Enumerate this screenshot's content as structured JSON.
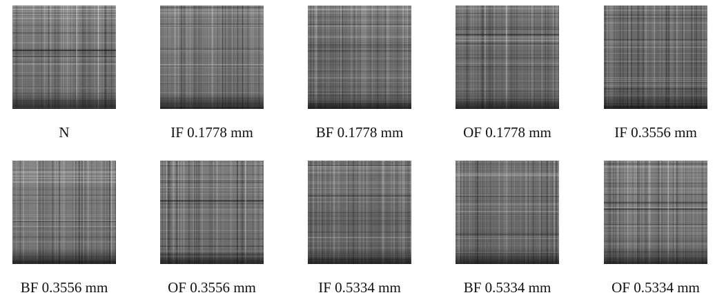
{
  "panels": [
    {
      "label": "N"
    },
    {
      "label": "IF 0.1778 mm"
    },
    {
      "label": "BF 0.1778 mm"
    },
    {
      "label": "OF 0.1778 mm"
    },
    {
      "label": "IF 0.3556 mm"
    },
    {
      "label": "BF 0.3556 mm"
    },
    {
      "label": "OF 0.3556 mm"
    },
    {
      "label": "IF 0.5334 mm"
    },
    {
      "label": "BF 0.5334 mm"
    },
    {
      "label": "OF 0.5334 mm"
    }
  ]
}
